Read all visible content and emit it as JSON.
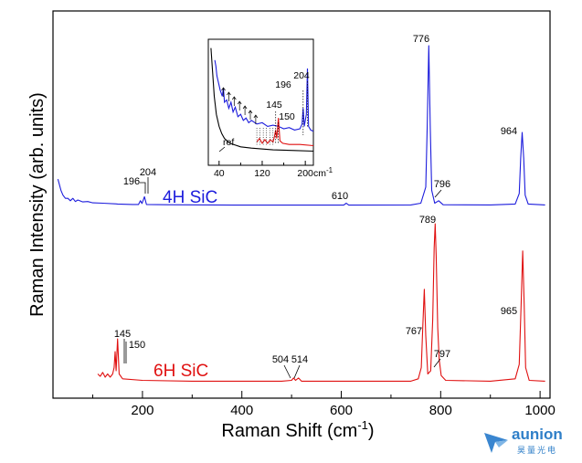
{
  "chart_data": {
    "type": "line",
    "xlabel": "Raman Shift (cm",
    "xlabel_sup": "-1",
    "xlabel_close": ")",
    "ylabel": "Raman Intensity (arb. units)",
    "xlim": [
      20,
      1020
    ],
    "xticks": [
      200,
      400,
      600,
      800,
      1000
    ],
    "y_ticks_labeled": false,
    "grid": false,
    "colors": {
      "4H": "#1c1cdc",
      "6H": "#e01010",
      "ref": "#000000"
    },
    "series": [
      {
        "name": "4H SiC",
        "peaks": [
          {
            "x": 196,
            "label": "196"
          },
          {
            "x": 204,
            "label": "204"
          },
          {
            "x": 610,
            "label": "610"
          },
          {
            "x": 776,
            "label": "776"
          },
          {
            "x": 796,
            "label": "796"
          },
          {
            "x": 964,
            "label": "964"
          }
        ],
        "points": [
          [
            30,
            0.17
          ],
          [
            36,
            0.1
          ],
          [
            40,
            0.07
          ],
          [
            45,
            0.05
          ],
          [
            50,
            0.05
          ],
          [
            55,
            0.035
          ],
          [
            60,
            0.05
          ],
          [
            65,
            0.03
          ],
          [
            70,
            0.04
          ],
          [
            80,
            0.028
          ],
          [
            90,
            0.03
          ],
          [
            100,
            0.022
          ],
          [
            120,
            0.02
          ],
          [
            150,
            0.015
          ],
          [
            180,
            0.012
          ],
          [
            192,
            0.012
          ],
          [
            196,
            0.035
          ],
          [
            199,
            0.018
          ],
          [
            204,
            0.06
          ],
          [
            208,
            0.012
          ],
          [
            250,
            0.01
          ],
          [
            400,
            0.008
          ],
          [
            605,
            0.008
          ],
          [
            610,
            0.02
          ],
          [
            615,
            0.008
          ],
          [
            740,
            0.009
          ],
          [
            760,
            0.02
          ],
          [
            770,
            0.12
          ],
          [
            773,
            0.5
          ],
          [
            776,
            1.0
          ],
          [
            779,
            0.5
          ],
          [
            782,
            0.1
          ],
          [
            788,
            0.02
          ],
          [
            796,
            0.035
          ],
          [
            805,
            0.01
          ],
          [
            900,
            0.009
          ],
          [
            950,
            0.015
          ],
          [
            958,
            0.08
          ],
          [
            961,
            0.3
          ],
          [
            964,
            0.46
          ],
          [
            967,
            0.3
          ],
          [
            970,
            0.07
          ],
          [
            976,
            0.015
          ],
          [
            1010,
            0.009
          ]
        ]
      },
      {
        "name": "6H SiC",
        "peaks": [
          {
            "x": 145,
            "label": "145"
          },
          {
            "x": 150,
            "label": "150"
          },
          {
            "x": 504,
            "label": "504"
          },
          {
            "x": 514,
            "label": "514"
          },
          {
            "x": 767,
            "label": "767"
          },
          {
            "x": 789,
            "label": "789"
          },
          {
            "x": 797,
            "label": "797"
          },
          {
            "x": 965,
            "label": "965"
          }
        ],
        "points": [
          [
            110,
            0.06
          ],
          [
            115,
            0.045
          ],
          [
            120,
            0.07
          ],
          [
            125,
            0.04
          ],
          [
            130,
            0.06
          ],
          [
            135,
            0.04
          ],
          [
            140,
            0.06
          ],
          [
            143,
            0.1
          ],
          [
            145,
            0.2
          ],
          [
            147,
            0.08
          ],
          [
            150,
            0.28
          ],
          [
            153,
            0.06
          ],
          [
            160,
            0.03
          ],
          [
            200,
            0.02
          ],
          [
            300,
            0.015
          ],
          [
            480,
            0.015
          ],
          [
            500,
            0.02
          ],
          [
            504,
            0.035
          ],
          [
            508,
            0.02
          ],
          [
            514,
            0.035
          ],
          [
            520,
            0.015
          ],
          [
            740,
            0.015
          ],
          [
            755,
            0.03
          ],
          [
            761,
            0.1
          ],
          [
            764,
            0.35
          ],
          [
            767,
            0.59
          ],
          [
            770,
            0.3
          ],
          [
            774,
            0.06
          ],
          [
            780,
            0.08
          ],
          [
            784,
            0.4
          ],
          [
            787,
            0.85
          ],
          [
            789,
            1.0
          ],
          [
            791,
            0.8
          ],
          [
            794,
            0.35
          ],
          [
            797,
            0.15
          ],
          [
            801,
            0.05
          ],
          [
            810,
            0.02
          ],
          [
            900,
            0.015
          ],
          [
            950,
            0.03
          ],
          [
            958,
            0.12
          ],
          [
            962,
            0.5
          ],
          [
            965,
            0.83
          ],
          [
            968,
            0.5
          ],
          [
            971,
            0.1
          ],
          [
            978,
            0.02
          ],
          [
            1010,
            0.015
          ]
        ]
      }
    ],
    "labels": {
      "4H": "4H SiC",
      "6H": "6H SiC"
    },
    "inset": {
      "xlim": [
        20,
        215
      ],
      "xticks": [
        40,
        120,
        200
      ],
      "mid_ticks": [
        80,
        160
      ],
      "xunit": "cm-1",
      "ref_label": "ref",
      "peak_labels": [
        {
          "x": 145,
          "label": "145",
          "series": "6H"
        },
        {
          "x": 150,
          "label": "150",
          "series": "6H"
        },
        {
          "x": 196,
          "label": "196",
          "series": "4H"
        },
        {
          "x": 204,
          "label": "204",
          "series": "4H"
        }
      ],
      "series": [
        {
          "name": "ref",
          "points": [
            [
              25,
              0.95
            ],
            [
              28,
              0.75
            ],
            [
              31,
              0.55
            ],
            [
              35,
              0.4
            ],
            [
              40,
              0.3
            ],
            [
              45,
              0.24
            ],
            [
              50,
              0.2
            ],
            [
              60,
              0.16
            ],
            [
              80,
              0.13
            ],
            [
              100,
              0.12
            ],
            [
              140,
              0.105
            ],
            [
              180,
              0.1
            ],
            [
              215,
              0.095
            ]
          ]
        },
        {
          "name": "4H",
          "points": [
            [
              32,
              0.85
            ],
            [
              34,
              0.8
            ],
            [
              36,
              0.72
            ],
            [
              38,
              0.68
            ],
            [
              42,
              0.6
            ],
            [
              46,
              0.55
            ],
            [
              48,
              0.62
            ],
            [
              50,
              0.5
            ],
            [
              54,
              0.52
            ],
            [
              58,
              0.45
            ],
            [
              62,
              0.5
            ],
            [
              66,
              0.42
            ],
            [
              70,
              0.46
            ],
            [
              75,
              0.38
            ],
            [
              80,
              0.4
            ],
            [
              85,
              0.35
            ],
            [
              90,
              0.37
            ],
            [
              95,
              0.33
            ],
            [
              100,
              0.35
            ],
            [
              110,
              0.32
            ],
            [
              120,
              0.33
            ],
            [
              130,
              0.3
            ],
            [
              140,
              0.31
            ],
            [
              150,
              0.3
            ],
            [
              160,
              0.28
            ],
            [
              170,
              0.29
            ],
            [
              180,
              0.27
            ],
            [
              190,
              0.28
            ],
            [
              194,
              0.32
            ],
            [
              196,
              0.45
            ],
            [
              198,
              0.3
            ],
            [
              202,
              0.4
            ],
            [
              204,
              0.78
            ],
            [
              206,
              0.3
            ],
            [
              210,
              0.27
            ],
            [
              215,
              0.26
            ]
          ]
        },
        {
          "name": "6H",
          "points": [
            [
              110,
              0.17
            ],
            [
              115,
              0.2
            ],
            [
              120,
              0.16
            ],
            [
              125,
              0.19
            ],
            [
              130,
              0.16
            ],
            [
              135,
              0.19
            ],
            [
              140,
              0.17
            ],
            [
              143,
              0.22
            ],
            [
              145,
              0.27
            ],
            [
              147,
              0.2
            ],
            [
              150,
              0.37
            ],
            [
              153,
              0.18
            ],
            [
              158,
              0.16
            ],
            [
              170,
              0.15
            ],
            [
              190,
              0.15
            ],
            [
              215,
              0.14
            ]
          ]
        }
      ]
    }
  },
  "logo": {
    "brand": "aunion",
    "sub": "昊量光电"
  }
}
